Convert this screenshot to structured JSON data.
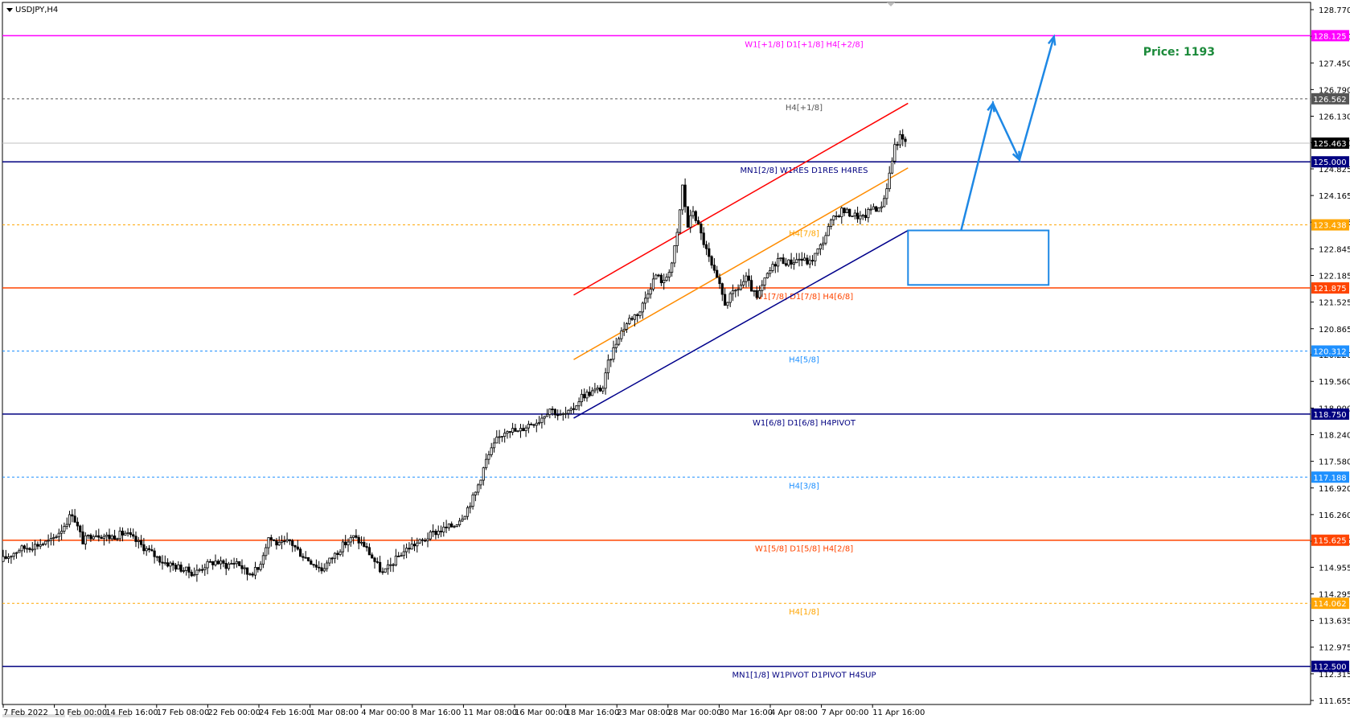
{
  "symbol_title": "USDJPY,H4",
  "price_annotation": "Price: 1193",
  "colors": {
    "magenta": "#ff00ff",
    "navy": "#000080",
    "orange_red": "#ff4500",
    "orange": "#ffa500",
    "blue_dash": "#1e90ff",
    "gray": "#555555",
    "channel_upper": "#ff0000",
    "channel_mid": "#ff8c00",
    "channel_lower": "#00008b",
    "arrow": "#1e88e5",
    "target_box": "#1e88e5",
    "current_price_bg": "#000000"
  },
  "chart_data": {
    "type": "candlestick",
    "ylim": [
      111.655,
      128.77
    ],
    "y_ticks": [
      "128.770",
      "128.110",
      "127.450",
      "126.790",
      "126.130",
      "125.470",
      "124.825",
      "124.165",
      "123.505",
      "122.845",
      "122.185",
      "121.525",
      "120.865",
      "120.220",
      "119.560",
      "118.900",
      "118.240",
      "117.580",
      "116.920",
      "116.260",
      "115.600",
      "114.955",
      "114.295",
      "113.635",
      "112.975",
      "112.315",
      "111.655"
    ],
    "x_ticks": [
      "7 Feb 2022",
      "10 Feb 00:00",
      "14 Feb 16:00",
      "17 Feb 08:00",
      "22 Feb 00:00",
      "24 Feb 16:00",
      "1 Mar 08:00",
      "4 Mar 00:00",
      "8 Mar 16:00",
      "11 Mar 08:00",
      "16 Mar 00:00",
      "18 Mar 16:00",
      "23 Mar 08:00",
      "28 Mar 00:00",
      "30 Mar 16:00",
      "4 Apr 08:00",
      "7 Apr 00:00",
      "11 Apr 16:00"
    ],
    "current_price": {
      "value": 125.463,
      "label": "125.463"
    },
    "levels": [
      {
        "value": 128.125,
        "label": "128.125",
        "text": "W1[+1/8] D1[+1/8] H4[+2/8]",
        "color": "#ff00ff",
        "style": "solid"
      },
      {
        "value": 126.562,
        "label": "126.562",
        "text": "H4[+1/8]",
        "color": "#555555",
        "style": "dotted"
      },
      {
        "value": 125.0,
        "label": "125.000",
        "text": "MN1[2/8] W1RES D1RES H4RES",
        "color": "#000080",
        "style": "solid"
      },
      {
        "value": 123.438,
        "label": "123.438",
        "text": "H4[7/8]",
        "color": "#ffa500",
        "style": "dotted"
      },
      {
        "value": 121.875,
        "label": "121.875",
        "text": "W1[7/8] D1[7/8] H4[6/8]",
        "color": "#ff4500",
        "style": "solid"
      },
      {
        "value": 120.312,
        "label": "120.312",
        "text": "H4[5/8]",
        "color": "#1e90ff",
        "style": "dotted"
      },
      {
        "value": 118.75,
        "label": "118.750",
        "text": "W1[6/8] D1[6/8] H4PIVOT",
        "color": "#000080",
        "style": "solid"
      },
      {
        "value": 117.188,
        "label": "117.188",
        "text": "H4[3/8]",
        "color": "#1e90ff",
        "style": "dotted"
      },
      {
        "value": 115.625,
        "label": "115.625",
        "text": "W1[5/8] D1[5/8] H4[2/8]",
        "color": "#ff4500",
        "style": "solid"
      },
      {
        "value": 114.062,
        "label": "114.062",
        "text": "H4[1/8]",
        "color": "#ffa500",
        "style": "dotted"
      },
      {
        "value": 112.5,
        "label": "112.500",
        "text": "MN1[1/8] W1PIVOT D1PIVOT H4SUP",
        "color": "#000080",
        "style": "solid"
      }
    ],
    "close_path": [
      [
        0,
        115.15
      ],
      [
        6,
        115.4
      ],
      [
        12,
        115.5
      ],
      [
        18,
        115.6
      ],
      [
        22,
        115.9
      ],
      [
        26,
        116.3
      ],
      [
        30,
        115.6
      ],
      [
        34,
        115.8
      ],
      [
        40,
        115.7
      ],
      [
        46,
        115.8
      ],
      [
        52,
        115.5
      ],
      [
        56,
        115.3
      ],
      [
        60,
        115.1
      ],
      [
        64,
        115.0
      ],
      [
        68,
        114.9
      ],
      [
        72,
        114.8
      ],
      [
        76,
        115.0
      ],
      [
        80,
        115.1
      ],
      [
        84,
        115.0
      ],
      [
        88,
        115.1
      ],
      [
        92,
        114.8
      ],
      [
        96,
        114.9
      ],
      [
        100,
        115.7
      ],
      [
        104,
        115.5
      ],
      [
        108,
        115.6
      ],
      [
        112,
        115.3
      ],
      [
        116,
        115.1
      ],
      [
        120,
        114.9
      ],
      [
        124,
        115.2
      ],
      [
        128,
        115.5
      ],
      [
        132,
        115.7
      ],
      [
        136,
        115.5
      ],
      [
        140,
        115.1
      ],
      [
        143,
        114.8
      ],
      [
        146,
        115.0
      ],
      [
        150,
        115.3
      ],
      [
        154,
        115.5
      ],
      [
        158,
        115.6
      ],
      [
        162,
        115.8
      ],
      [
        166,
        115.9
      ],
      [
        170,
        116.0
      ],
      [
        174,
        116.3
      ],
      [
        178,
        116.8
      ],
      [
        182,
        117.6
      ],
      [
        186,
        118.1
      ],
      [
        190,
        118.4
      ],
      [
        194,
        118.3
      ],
      [
        198,
        118.5
      ],
      [
        202,
        118.6
      ],
      [
        206,
        118.9
      ],
      [
        210,
        118.7
      ],
      [
        214,
        118.8
      ],
      [
        218,
        119.2
      ],
      [
        222,
        119.3
      ],
      [
        226,
        119.4
      ],
      [
        228,
        120.0
      ],
      [
        232,
        120.7
      ],
      [
        236,
        121.1
      ],
      [
        240,
        121.3
      ],
      [
        243,
        121.8
      ],
      [
        246,
        122.2
      ],
      [
        249,
        122.0
      ],
      [
        252,
        122.5
      ],
      [
        254,
        123.2
      ],
      [
        256,
        124.4
      ],
      [
        258,
        123.4
      ],
      [
        260,
        123.8
      ],
      [
        262,
        123.4
      ],
      [
        264,
        123.0
      ],
      [
        267,
        122.4
      ],
      [
        270,
        121.9
      ],
      [
        272,
        121.5
      ],
      [
        276,
        121.8
      ],
      [
        280,
        122.1
      ],
      [
        284,
        121.6
      ],
      [
        288,
        122.2
      ],
      [
        292,
        122.6
      ],
      [
        296,
        122.5
      ],
      [
        300,
        122.6
      ],
      [
        304,
        122.5
      ],
      [
        308,
        122.9
      ],
      [
        312,
        123.5
      ],
      [
        316,
        123.8
      ],
      [
        320,
        123.7
      ],
      [
        324,
        123.6
      ],
      [
        328,
        123.9
      ],
      [
        330,
        123.8
      ],
      [
        332,
        124.1
      ],
      [
        334,
        124.7
      ],
      [
        336,
        125.4
      ],
      [
        338,
        125.6
      ],
      [
        340,
        125.463
      ]
    ],
    "channels": [
      {
        "name": "upper",
        "from": [
          215,
          121.7
        ],
        "to": [
          341,
          126.45
        ]
      },
      {
        "name": "middle",
        "from": [
          215,
          120.1
        ],
        "to": [
          341,
          124.85
        ]
      },
      {
        "name": "lower",
        "from": [
          215,
          118.65
        ],
        "to": [
          341,
          123.3
        ]
      }
    ],
    "target_box": {
      "x0": 341,
      "x1": 394,
      "y_high": 123.3,
      "y_low": 121.95
    },
    "projection_path": [
      [
        361,
        123.3
      ],
      [
        373,
        126.45
      ],
      [
        383,
        125.05
      ],
      [
        396,
        128.1
      ]
    ]
  }
}
